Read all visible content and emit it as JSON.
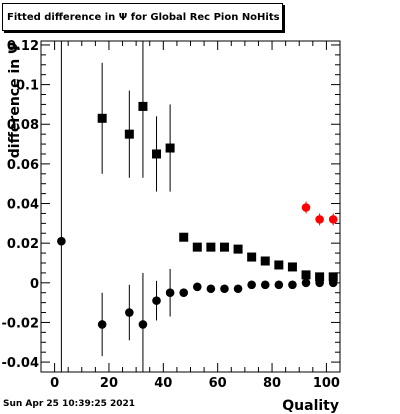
{
  "chart_data": {
    "type": "scatter",
    "title": "Fitted difference in  Ψ  for Global Rec Pion NoHits",
    "xlabel": "Quality",
    "ylabel": "difference in  Ψ",
    "xlim": [
      -5,
      105
    ],
    "ylim": [
      -0.045,
      0.122
    ],
    "grid": false,
    "x_ticks": [
      0,
      20,
      40,
      60,
      80,
      100
    ],
    "x_tick_labels": [
      "0",
      "20",
      "40",
      "60",
      "80",
      "100"
    ],
    "y_ticks": [
      -0.04,
      -0.02,
      0,
      0.02,
      0.04,
      0.06,
      0.08,
      0.1,
      0.12
    ],
    "y_tick_labels": [
      "-0.04",
      "-0.02",
      "0",
      "0.02",
      "0.04",
      "0.06",
      "0.08",
      "0.1",
      "0.12"
    ],
    "series": [
      {
        "marker": "square",
        "color": "#000000",
        "points": [
          {
            "x": 17.5,
            "y": 0.083,
            "err": 0.028
          },
          {
            "x": 27.5,
            "y": 0.075,
            "err": 0.022
          },
          {
            "x": 32.5,
            "y": 0.089,
            "err": 0.036
          },
          {
            "x": 37.5,
            "y": 0.065,
            "err": 0.019
          },
          {
            "x": 42.5,
            "y": 0.068,
            "err": 0.022
          },
          {
            "x": 47.5,
            "y": 0.023,
            "err": 0.002
          },
          {
            "x": 52.5,
            "y": 0.018,
            "err": 0.0015
          },
          {
            "x": 57.5,
            "y": 0.018,
            "err": 0.0015
          },
          {
            "x": 62.5,
            "y": 0.018,
            "err": 0.0015
          },
          {
            "x": 67.5,
            "y": 0.017,
            "err": 0.0015
          },
          {
            "x": 72.5,
            "y": 0.013,
            "err": 0.0015
          },
          {
            "x": 77.5,
            "y": 0.011,
            "err": 0.001
          },
          {
            "x": 82.5,
            "y": 0.009,
            "err": 0.001
          },
          {
            "x": 87.5,
            "y": 0.008,
            "err": 0.001
          },
          {
            "x": 92.5,
            "y": 0.004,
            "err": 0.001
          },
          {
            "x": 97.5,
            "y": 0.003,
            "err": 0.001
          },
          {
            "x": 102.5,
            "y": 0.003,
            "err": 0.001
          }
        ]
      },
      {
        "marker": "circle",
        "color": "#000000",
        "points": [
          {
            "x": 2.5,
            "y": 0.021,
            "err": 0.12
          },
          {
            "x": 17.5,
            "y": -0.021,
            "err": 0.016
          },
          {
            "x": 27.5,
            "y": -0.015,
            "err": 0.014
          },
          {
            "x": 32.5,
            "y": -0.021,
            "err": 0.026
          },
          {
            "x": 37.5,
            "y": -0.009,
            "err": 0.01
          },
          {
            "x": 42.5,
            "y": -0.005,
            "err": 0.012
          },
          {
            "x": 47.5,
            "y": -0.005,
            "err": 0.002
          },
          {
            "x": 52.5,
            "y": -0.002,
            "err": 0.001
          },
          {
            "x": 57.5,
            "y": -0.003,
            "err": 0.001
          },
          {
            "x": 62.5,
            "y": -0.003,
            "err": 0.001
          },
          {
            "x": 67.5,
            "y": -0.003,
            "err": 0.001
          },
          {
            "x": 72.5,
            "y": -0.001,
            "err": 0.001
          },
          {
            "x": 77.5,
            "y": -0.001,
            "err": 0.001
          },
          {
            "x": 82.5,
            "y": -0.001,
            "err": 0.001
          },
          {
            "x": 87.5,
            "y": -0.001,
            "err": 0.001
          },
          {
            "x": 92.5,
            "y": 0.0,
            "err": 0.001
          },
          {
            "x": 97.5,
            "y": 0.0,
            "err": 0.001
          },
          {
            "x": 102.5,
            "y": 0.0,
            "err": 0.001
          }
        ]
      },
      {
        "marker": "circle",
        "color": "#ff0000",
        "points": [
          {
            "x": 92.5,
            "y": 0.038,
            "err": 0.003
          },
          {
            "x": 97.5,
            "y": 0.032,
            "err": 0.003
          },
          {
            "x": 102.5,
            "y": 0.032,
            "err": 0.003
          }
        ]
      }
    ]
  },
  "footer": {
    "timestamp": "Sun Apr 25 10:39:25 2021"
  }
}
